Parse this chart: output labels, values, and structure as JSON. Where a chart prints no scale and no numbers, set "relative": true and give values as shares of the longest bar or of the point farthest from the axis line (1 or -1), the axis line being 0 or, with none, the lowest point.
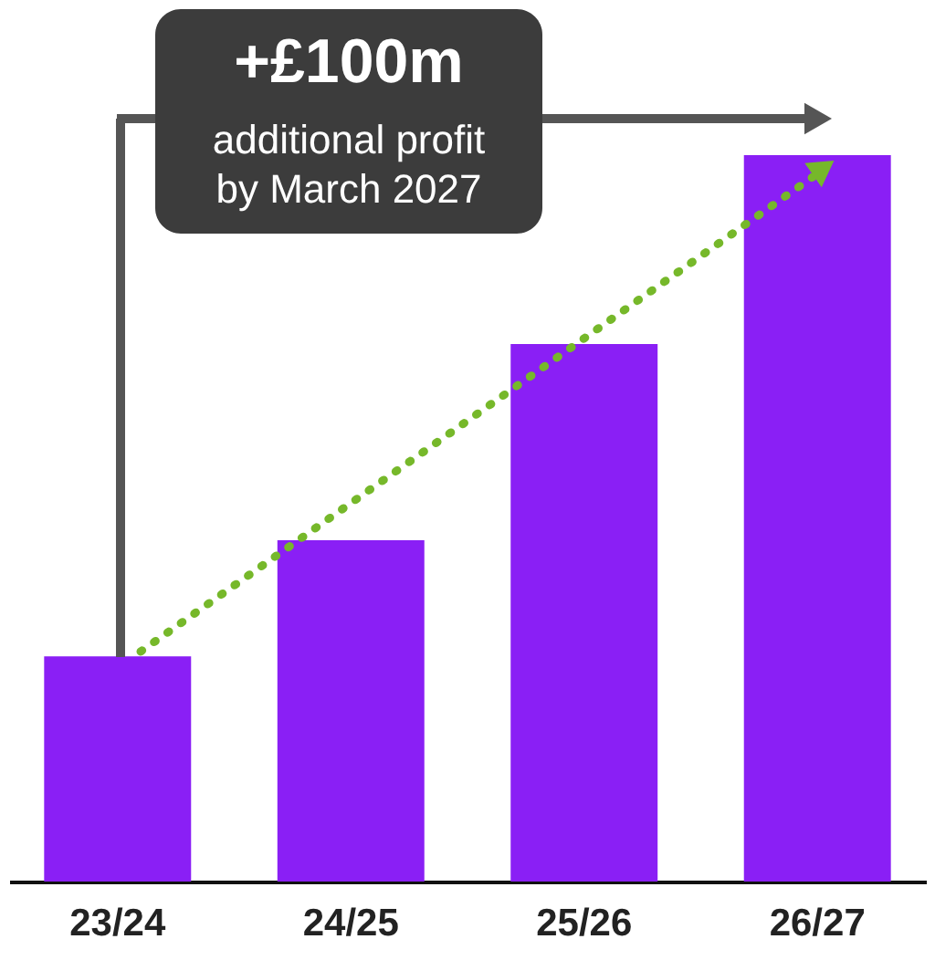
{
  "chart_data": {
    "type": "bar",
    "relative": true,
    "categories": [
      "23/24",
      "24/25",
      "25/26",
      "26/27"
    ],
    "values": [
      0.31,
      0.47,
      0.74,
      1
    ],
    "color": "#8a1ff5",
    "annotations": [
      "+£100m",
      "additional profit",
      "by March 2027"
    ]
  }
}
